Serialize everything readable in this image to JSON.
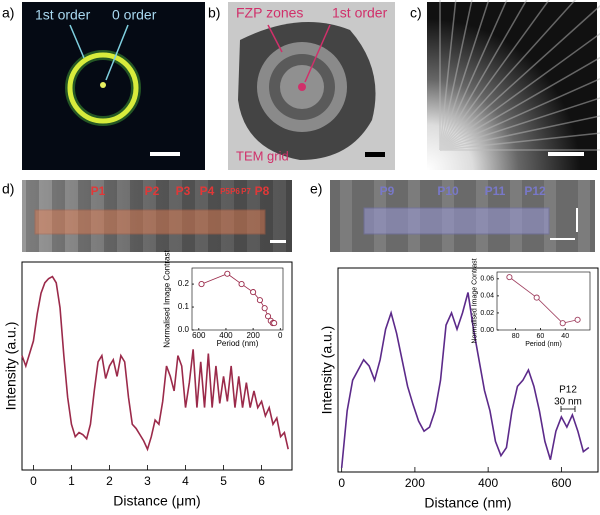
{
  "panels": {
    "a": {
      "label": "a)",
      "annotations": [
        "1st order",
        "0 order"
      ]
    },
    "b": {
      "label": "b)",
      "annotations": [
        "FZP zones",
        "1st order",
        "TEM grid"
      ]
    },
    "c": {
      "label": "c)"
    },
    "d": {
      "label": "d)",
      "markers": [
        "P1",
        "P2",
        "P3",
        "P4",
        "P5",
        "P6",
        "P7",
        "P8"
      ]
    },
    "e": {
      "label": "e)",
      "markers": [
        "P9",
        "P10",
        "P11",
        "P12"
      ]
    }
  },
  "chart_data": [
    {
      "type": "line",
      "x_label": "Distance (μm)",
      "y_label": "Intensity (a.u.)",
      "color": "#9b2a4a",
      "x": [
        -0.3,
        -0.2,
        -0.1,
        0,
        0.1,
        0.2,
        0.3,
        0.4,
        0.5,
        0.6,
        0.7,
        0.8,
        0.9,
        1.0,
        1.1,
        1.2,
        1.3,
        1.4,
        1.5,
        1.6,
        1.7,
        1.8,
        1.9,
        2.0,
        2.1,
        2.2,
        2.3,
        2.4,
        2.5,
        2.6,
        2.7,
        2.8,
        2.9,
        3.0,
        3.1,
        3.2,
        3.3,
        3.4,
        3.5,
        3.6,
        3.7,
        3.8,
        3.9,
        4.0,
        4.1,
        4.2,
        4.3,
        4.4,
        4.5,
        4.6,
        4.7,
        4.8,
        4.9,
        5.0,
        5.1,
        5.2,
        5.3,
        5.4,
        5.5,
        5.6,
        5.7,
        5.8,
        5.9,
        6.0,
        6.1,
        6.2,
        6.3,
        6.4,
        6.5,
        6.6,
        6.7
      ],
      "values": [
        0.55,
        0.5,
        0.56,
        0.62,
        0.75,
        0.85,
        0.9,
        0.92,
        0.93,
        0.9,
        0.78,
        0.55,
        0.35,
        0.22,
        0.16,
        0.18,
        0.17,
        0.15,
        0.22,
        0.38,
        0.52,
        0.55,
        0.44,
        0.5,
        0.53,
        0.45,
        0.55,
        0.52,
        0.35,
        0.22,
        0.2,
        0.17,
        0.14,
        0.1,
        0.16,
        0.24,
        0.22,
        0.33,
        0.5,
        0.45,
        0.38,
        0.55,
        0.5,
        0.3,
        0.42,
        0.58,
        0.3,
        0.52,
        0.3,
        0.56,
        0.3,
        0.5,
        0.32,
        0.45,
        0.33,
        0.5,
        0.3,
        0.45,
        0.3,
        0.42,
        0.3,
        0.38,
        0.3,
        0.33,
        0.26,
        0.3,
        0.22,
        0.25,
        0.16,
        0.18,
        0.1
      ],
      "xlim": [
        -0.3,
        6.8
      ],
      "xticks": [
        0,
        1,
        2,
        3,
        4,
        5,
        6
      ],
      "ylim": [
        0,
        1
      ]
    },
    {
      "type": "line",
      "marker": "circle",
      "x_label": "Period (nm)",
      "y_label": "Normalised Image Contrast",
      "color": "#9b2a4a",
      "x": [
        580,
        390,
        285,
        200,
        150,
        115,
        90,
        70,
        55,
        45
      ],
      "values": [
        0.2,
        0.245,
        0.2,
        0.165,
        0.13,
        0.095,
        0.06,
        0.04,
        0.03,
        0.03
      ],
      "xlim": [
        650,
        -20
      ],
      "xticks": [
        600,
        400,
        200,
        0
      ],
      "ylim": [
        0,
        0.27
      ],
      "yticks": [
        {
          "value": 0,
          "label": "0.0"
        },
        0.1,
        0.2
      ]
    },
    {
      "type": "line",
      "x_label": "Distance (nm)",
      "y_label": "Intensity (a.u.)",
      "color": "#5c2a8a",
      "x": [
        0,
        15,
        30,
        45,
        60,
        75,
        90,
        105,
        120,
        135,
        150,
        165,
        180,
        195,
        210,
        225,
        240,
        255,
        270,
        285,
        300,
        315,
        330,
        345,
        360,
        375,
        390,
        405,
        420,
        435,
        450,
        465,
        480,
        495,
        510,
        525,
        540,
        555,
        570,
        585,
        600,
        615,
        630,
        645,
        660,
        675
      ],
      "values": [
        0.02,
        0.3,
        0.45,
        0.5,
        0.55,
        0.52,
        0.45,
        0.55,
        0.7,
        0.78,
        0.68,
        0.55,
        0.42,
        0.33,
        0.25,
        0.2,
        0.22,
        0.3,
        0.45,
        0.72,
        0.78,
        0.7,
        0.78,
        0.88,
        0.7,
        0.55,
        0.4,
        0.3,
        0.15,
        0.08,
        0.12,
        0.3,
        0.42,
        0.45,
        0.5,
        0.42,
        0.3,
        0.15,
        0.06,
        0.2,
        0.27,
        0.22,
        0.28,
        0.2,
        0.1,
        0.12
      ],
      "xlim": [
        -10,
        700
      ],
      "xticks": [
        0,
        200,
        400,
        600
      ],
      "ylim": [
        0,
        1
      ],
      "annotations": [
        "P12",
        "30 nm"
      ]
    },
    {
      "type": "line",
      "marker": "circle",
      "x_label": "Period (nm)",
      "y_label": "Normalised Image Contrast",
      "color": "#a04060",
      "x": [
        85,
        63,
        42,
        30
      ],
      "values": [
        0.062,
        0.038,
        0.008,
        0.012
      ],
      "xlim": [
        95,
        20
      ],
      "xticks": [
        80,
        60,
        40
      ],
      "ylim": [
        0,
        0.068
      ],
      "yticks": [
        {
          "value": 0,
          "label": "0.00"
        },
        0.02,
        0.04,
        0.06
      ]
    }
  ]
}
